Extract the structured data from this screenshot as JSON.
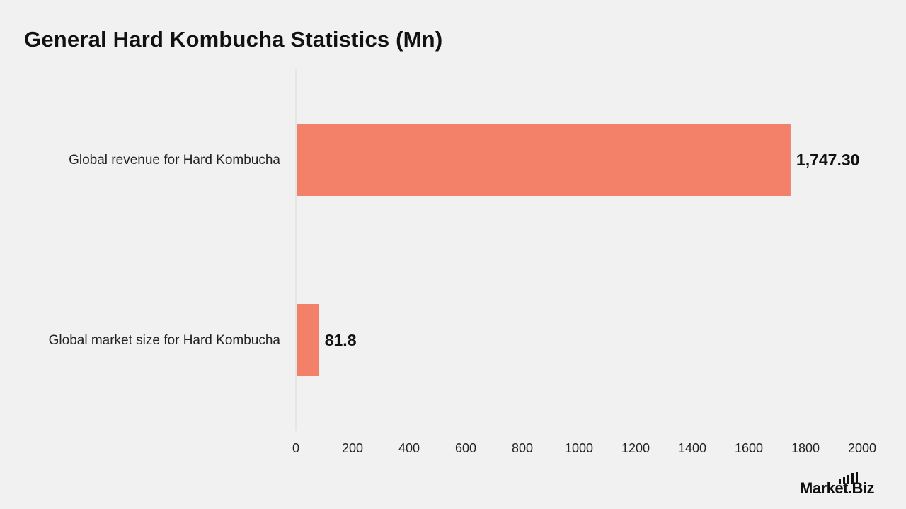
{
  "chart_data": {
    "type": "bar",
    "orientation": "horizontal",
    "title": "General Hard Kombucha Statistics (Mn)",
    "categories": [
      "Global revenue for Hard Kombucha",
      "Global market size for Hard Kombucha"
    ],
    "values": [
      1747.3,
      81.8
    ],
    "value_labels": [
      "1,747.30",
      "81.8"
    ],
    "xlim": [
      0,
      2000
    ],
    "x_ticks": [
      0,
      200,
      400,
      600,
      800,
      1000,
      1200,
      1400,
      1600,
      1800,
      2000
    ],
    "grid": false,
    "legend": "none",
    "bar_color": "#f3816a"
  },
  "brand": {
    "name": "Market.Biz"
  }
}
